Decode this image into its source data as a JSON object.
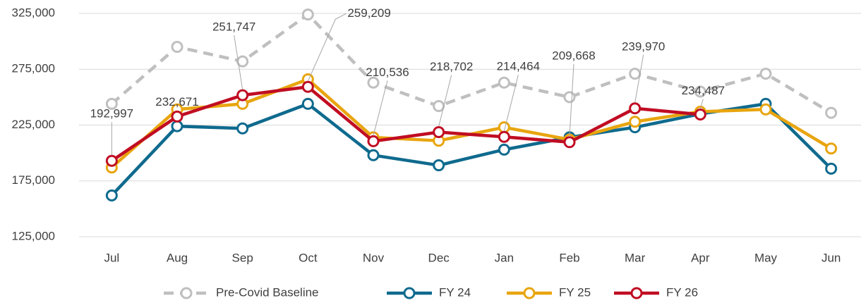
{
  "chart_data": {
    "type": "line",
    "categories": [
      "Jul",
      "Aug",
      "Sep",
      "Oct",
      "Nov",
      "Dec",
      "Jan",
      "Feb",
      "Mar",
      "Apr",
      "May",
      "Jun"
    ],
    "series": [
      {
        "name": "Pre-Covid Baseline",
        "color": "#bfbfbf",
        "dashed": true,
        "values": [
          244000,
          295000,
          282000,
          324000,
          263000,
          242000,
          263000,
          250000,
          271000,
          255000,
          271000,
          236000
        ]
      },
      {
        "name": "FY 24",
        "color": "#0f6a8e",
        "values": [
          162000,
          224000,
          222000,
          244000,
          198000,
          189000,
          203000,
          214000,
          223000,
          235000,
          244000,
          186000
        ]
      },
      {
        "name": "FY 25",
        "color": "#e8a50f",
        "values": [
          187000,
          239000,
          244000,
          266000,
          214000,
          211000,
          223000,
          212000,
          228000,
          237000,
          239000,
          204000
        ]
      },
      {
        "name": "FY 26",
        "color": "#c00d23",
        "values": [
          192997,
          232671,
          251747,
          259209,
          210536,
          218702,
          214464,
          209668,
          239970,
          234487,
          null,
          null
        ],
        "value_labels": [
          "192,997",
          "232,671",
          "251,747",
          "259,209",
          "210,536",
          "218,702",
          "214,464",
          "209,668",
          "239,970",
          "234,487",
          null,
          null
        ]
      }
    ],
    "ylim": [
      125000,
      325000
    ],
    "yticks": [
      {
        "value": 125000,
        "label": "125,000"
      },
      {
        "value": 175000,
        "label": "175,000"
      },
      {
        "value": 225000,
        "label": "225,000"
      },
      {
        "value": 275000,
        "label": "275,000"
      },
      {
        "value": 325000,
        "label": "325,000"
      }
    ],
    "grid": true,
    "legend": "bottom"
  }
}
